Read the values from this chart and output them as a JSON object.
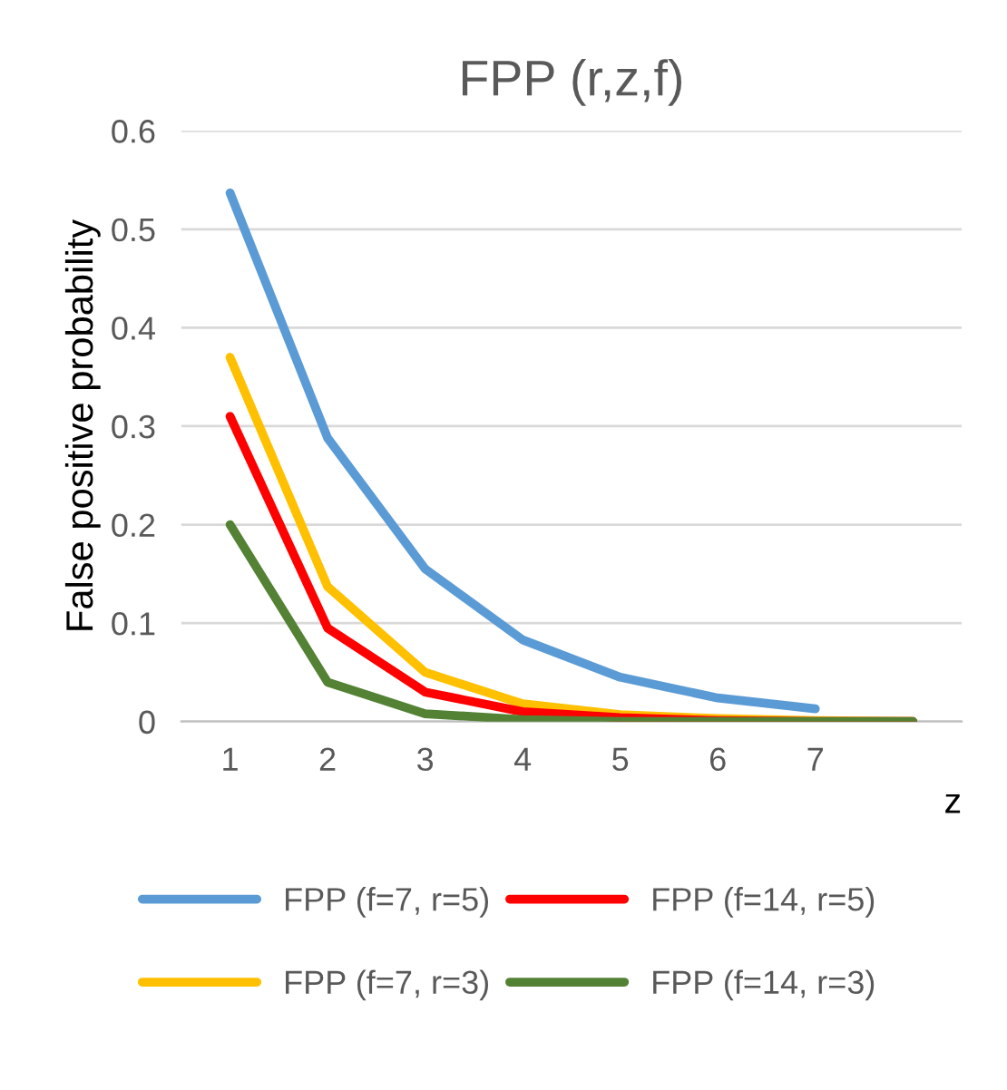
{
  "chart_data": {
    "type": "line",
    "title": "FPP (r,z,f)",
    "xlabel": "z",
    "ylabel": "False positive probability",
    "categories": [
      "1",
      "2",
      "3",
      "4",
      "5",
      "6",
      "7",
      null
    ],
    "series": [
      {
        "name": "FPP (f=7, r=5)",
        "color": "#5b9bd5",
        "values": [
          0.537,
          0.288,
          0.155,
          0.083,
          0.045,
          0.024,
          0.013,
          null
        ]
      },
      {
        "name": "FPP (f=7, r=3)",
        "color": "#ffc000",
        "values": [
          0.37,
          0.137,
          0.05,
          0.018,
          0.007,
          0.003,
          0.001,
          0.0
        ]
      },
      {
        "name": "FPP (f=14, r=5)",
        "color": "#ff0000",
        "values": [
          0.31,
          0.095,
          0.03,
          0.01,
          0.004,
          0.001,
          0.0,
          0.0
        ]
      },
      {
        "name": "FPP (f=14, r=3)",
        "color": "#548235",
        "values": [
          0.2,
          0.04,
          0.008,
          0.002,
          0.0,
          0.0,
          0.0,
          0.0
        ]
      }
    ],
    "ylim": [
      0,
      0.6
    ],
    "yticks": [
      0,
      0.1,
      0.2,
      0.3,
      0.4,
      0.5,
      0.6
    ],
    "grid": "y",
    "legend": "bottom",
    "marker": "none",
    "line_style": "solid"
  }
}
